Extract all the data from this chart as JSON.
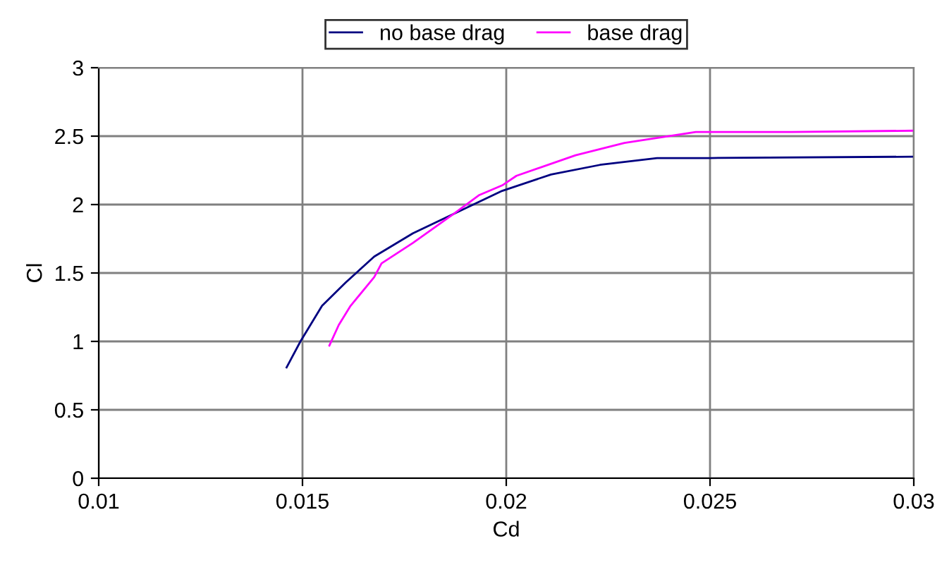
{
  "chart_data": {
    "type": "line",
    "xlabel": "Cd",
    "ylabel": "Cl",
    "xlim": [
      0.01,
      0.03
    ],
    "xticks": [
      0.01,
      0.015,
      0.02,
      0.025,
      0.03
    ],
    "ylim": [
      0,
      3
    ],
    "yticks": [
      0,
      0.5,
      1,
      1.5,
      2,
      2.5,
      3
    ],
    "grid": true,
    "legend": "top",
    "marker": "none",
    "line_style": "solid",
    "series": [
      {
        "name": "no base drag",
        "color": "#000080",
        "x": [
          0.01461,
          0.01495,
          0.01548,
          0.01606,
          0.01676,
          0.01771,
          0.0187,
          0.0199,
          0.0211,
          0.0223,
          0.0237,
          0.025,
          0.03
        ],
        "values": [
          0.81,
          1.0,
          1.26,
          1.43,
          1.62,
          1.79,
          1.93,
          2.1,
          2.22,
          2.29,
          2.34,
          2.34,
          2.35
        ]
      },
      {
        "name": "base drag",
        "color": "#ff00ff",
        "x": [
          0.01566,
          0.01589,
          0.01618,
          0.01676,
          0.01694,
          0.01771,
          0.0187,
          0.01934,
          0.0199,
          0.02025,
          0.0217,
          0.0229,
          0.02465,
          0.027,
          0.03
        ],
        "values": [
          0.97,
          1.12,
          1.26,
          1.47,
          1.57,
          1.72,
          1.93,
          2.07,
          2.14,
          2.21,
          2.36,
          2.45,
          2.53,
          2.53,
          2.54
        ]
      }
    ]
  }
}
